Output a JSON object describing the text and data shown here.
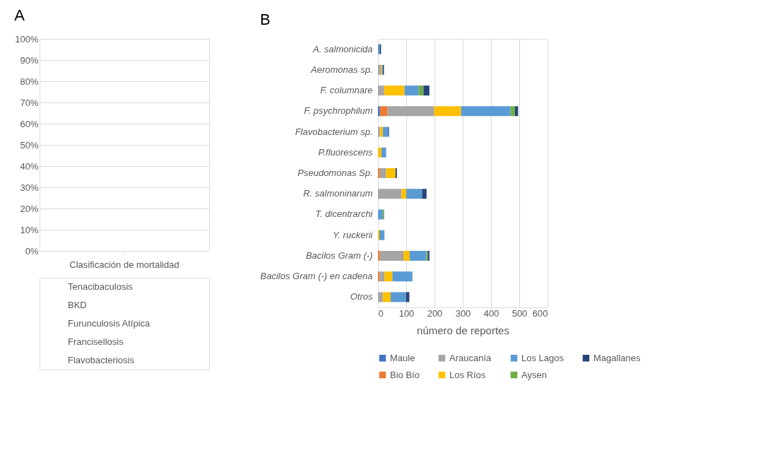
{
  "chart_data": [
    {
      "type": "bar",
      "title": "A",
      "stacked": true,
      "categories": [
        "Clasificación de mortalidad"
      ],
      "ylim": [
        0,
        100
      ],
      "yticks": [
        {
          "value": 0,
          "label": "0%"
        },
        {
          "value": 10,
          "label": "10%"
        },
        {
          "value": 20,
          "label": "20%"
        },
        {
          "value": 30,
          "label": "30%"
        },
        {
          "value": 40,
          "label": "40%"
        },
        {
          "value": 50,
          "label": "50%"
        },
        {
          "value": 60,
          "label": "60%"
        },
        {
          "value": 70,
          "label": "70%"
        },
        {
          "value": 80,
          "label": "80%"
        },
        {
          "value": 90,
          "label": "90%"
        },
        {
          "value": 100,
          "label": "100%"
        }
      ],
      "grid": "y",
      "values": [
        null
      ],
      "annotations": [
        "Tenacibaculosis",
        "BKD",
        "Furunculosis Atípica",
        "Francisellosis",
        "Flavobacteriosis"
      ]
    },
    {
      "type": "bar",
      "title": "B",
      "stacked": true,
      "orientation": "horizontal",
      "xlabel": "número de reportes",
      "categories": [
        "A. salmonicida",
        "Aeromonas sp.",
        "F. columnare",
        "F. psychrophilum",
        "Flavobacterium sp.",
        "P.fluorescens",
        "Pseudomonas Sp.",
        "R. salmoninarum",
        "T. dicentrarchi",
        "Y. ruckerii",
        "Bacilos Gram (-)",
        "Bacilos Gram (-) en cadena",
        "Otros"
      ],
      "xlim": [
        0,
        600
      ],
      "xticks": [
        0,
        100,
        200,
        300,
        400,
        500,
        600
      ],
      "grid": "x",
      "legend": "bottom",
      "series": [
        {
          "name": "Maule",
          "color": "#4472c4",
          "values": [
            null,
            null,
            null,
            7,
            null,
            null,
            null,
            null,
            null,
            null,
            null,
            null,
            null
          ]
        },
        {
          "name": "Bio Bío",
          "color": "#ed7d31",
          "values": [
            null,
            null,
            null,
            27,
            null,
            null,
            7,
            null,
            null,
            null,
            7,
            6,
            null
          ]
        },
        {
          "name": "Araucanía",
          "color": "#a5a5a5",
          "values": [
            null,
            10,
            22,
            165,
            7,
            null,
            22,
            83,
            null,
            null,
            83,
            17,
            17
          ]
        },
        {
          "name": "Los Ríos",
          "color": "#ffc000",
          "values": [
            null,
            4,
            72,
            95,
            10,
            12,
            33,
            17,
            null,
            5,
            22,
            28,
            28
          ]
        },
        {
          "name": "Los Lagos",
          "color": "#5b9bd5",
          "values": [
            6,
            3,
            50,
            175,
            19,
            17,
            null,
            56,
            17,
            18,
            59,
            71,
            54
          ]
        },
        {
          "name": "Aysen",
          "color": "#70ad47",
          "values": [
            null,
            null,
            17,
            16,
            null,
            null,
            null,
            null,
            5,
            null,
            5,
            null,
            null
          ]
        },
        {
          "name": "Magallanes",
          "color": "#264478",
          "values": [
            5,
            4,
            21,
            11,
            3,
            null,
            5,
            16,
            null,
            null,
            6,
            null,
            12
          ]
        }
      ]
    }
  ]
}
